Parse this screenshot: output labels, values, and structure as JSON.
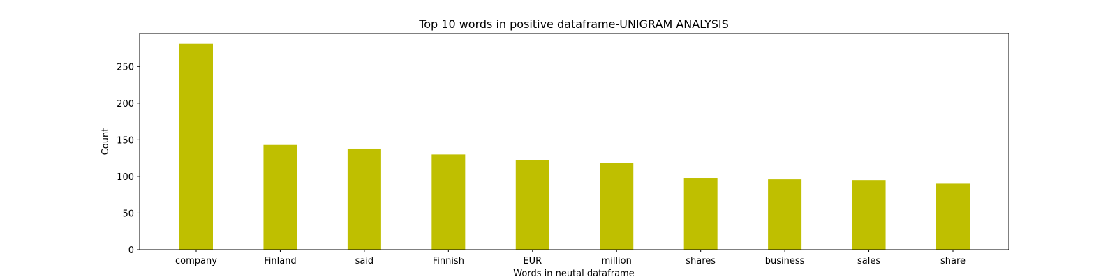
{
  "chart_data": {
    "type": "bar",
    "title": "Top 10 words in positive dataframe-UNIGRAM ANALYSIS",
    "xlabel": "Words in neutal dataframe",
    "ylabel": "Count",
    "categories": [
      "company",
      "Finland",
      "said",
      "Finnish",
      "EUR",
      "million",
      "shares",
      "business",
      "sales",
      "share"
    ],
    "values": [
      281,
      143,
      138,
      130,
      122,
      118,
      98,
      96,
      95,
      90
    ],
    "ylim": [
      0,
      295
    ],
    "yticks": [
      0,
      50,
      100,
      150,
      200,
      250
    ],
    "bar_color": "#bfbf00",
    "grid": false,
    "legend": "none"
  }
}
